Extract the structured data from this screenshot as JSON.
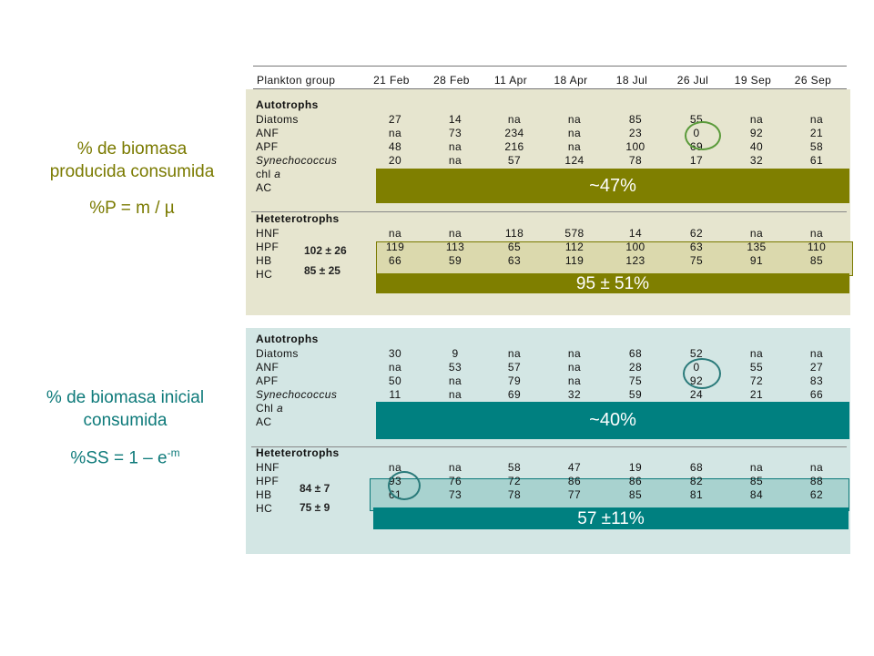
{
  "side1": {
    "line1": "% de biomasa",
    "line2": "producida consumida",
    "formula": "%P = m / µ"
  },
  "side2": {
    "line1": "% de biomasa inicial",
    "line2": "consumida",
    "formula_base": "%SS = 1 – e",
    "formula_exp": "-m"
  },
  "table": {
    "group_header": "Plankton group",
    "dates": [
      "21 Feb",
      "28 Feb",
      "11 Apr",
      "18 Apr",
      "18 Jul",
      "26 Jul",
      "19 Sep",
      "26 Sep"
    ]
  },
  "table1": {
    "autotrophs_title": "Autotrophs",
    "autotrophs": [
      {
        "name": "Diatoms",
        "italic": false,
        "values": [
          "27",
          "14",
          "na",
          "na",
          "85",
          "55",
          "na",
          "na"
        ]
      },
      {
        "name": "ANF",
        "italic": false,
        "values": [
          "na",
          "73",
          "234",
          "na",
          "23",
          "0",
          "92",
          "21"
        ]
      },
      {
        "name": "APF",
        "italic": false,
        "values": [
          "48",
          "na",
          "216",
          "na",
          "100",
          "69",
          "40",
          "58"
        ]
      },
      {
        "name": "Synechococcus",
        "italic": true,
        "values": [
          "20",
          "na",
          "57",
          "124",
          "78",
          "17",
          "32",
          "61"
        ]
      }
    ],
    "chl_prefix": "chl ",
    "chl_suffix": "a",
    "ac": "AC",
    "heterotrophs_title": "Heteterotrophs",
    "heterotrophs": [
      {
        "name": "HNF",
        "values": [
          "na",
          "na",
          "118",
          "578",
          "14",
          "62",
          "na",
          "na"
        ]
      },
      {
        "name": "HPF",
        "values": [
          "119",
          "113",
          "65",
          "112",
          "100",
          "63",
          "135",
          "110"
        ]
      },
      {
        "name": "HB",
        "values": [
          "66",
          "59",
          "63",
          "119",
          "123",
          "75",
          "91",
          "85"
        ]
      },
      {
        "name": "HC",
        "values": []
      }
    ],
    "stat_hpf": "102 ± 26",
    "stat_hb": "85 ± 25",
    "band_autotrophs": "~47%",
    "band_heterotrophs": "95 ± 51%"
  },
  "table2": {
    "autotrophs_title": "Autotrophs",
    "autotrophs": [
      {
        "name": "Diatoms",
        "italic": false,
        "values": [
          "30",
          "9",
          "na",
          "na",
          "68",
          "52",
          "na",
          "na"
        ]
      },
      {
        "name": "ANF",
        "italic": false,
        "values": [
          "na",
          "53",
          "57",
          "na",
          "28",
          "0",
          "55",
          "27"
        ]
      },
      {
        "name": "APF",
        "italic": false,
        "values": [
          "50",
          "na",
          "79",
          "na",
          "75",
          "92",
          "72",
          "83"
        ]
      },
      {
        "name": "Synechococcus",
        "italic": true,
        "values": [
          "11",
          "na",
          "69",
          "32",
          "59",
          "24",
          "21",
          "66"
        ]
      }
    ],
    "chl_prefix": "Chl ",
    "chl_suffix": "a",
    "ac": "AC",
    "heterotrophs_title": "Heteterotrophs",
    "heterotrophs": [
      {
        "name": "HNF",
        "values": [
          "na",
          "na",
          "58",
          "47",
          "19",
          "68",
          "na",
          "na"
        ]
      },
      {
        "name": "HPF",
        "values": [
          "93",
          "76",
          "72",
          "86",
          "86",
          "82",
          "85",
          "88"
        ]
      },
      {
        "name": "HB",
        "values": [
          "61",
          "73",
          "78",
          "77",
          "85",
          "81",
          "84",
          "62"
        ]
      },
      {
        "name": "HC",
        "values": []
      }
    ],
    "stat_hpf": "84 ± 7",
    "stat_hb": "75 ± 9",
    "band_autotrophs": "~40%",
    "band_heterotrophs": "57 ±11%"
  },
  "colors": {
    "olive": "#7f7f00",
    "teal": "#008080",
    "circle_green": "#5a9a3a",
    "circle_teal": "#2a7a7a"
  }
}
